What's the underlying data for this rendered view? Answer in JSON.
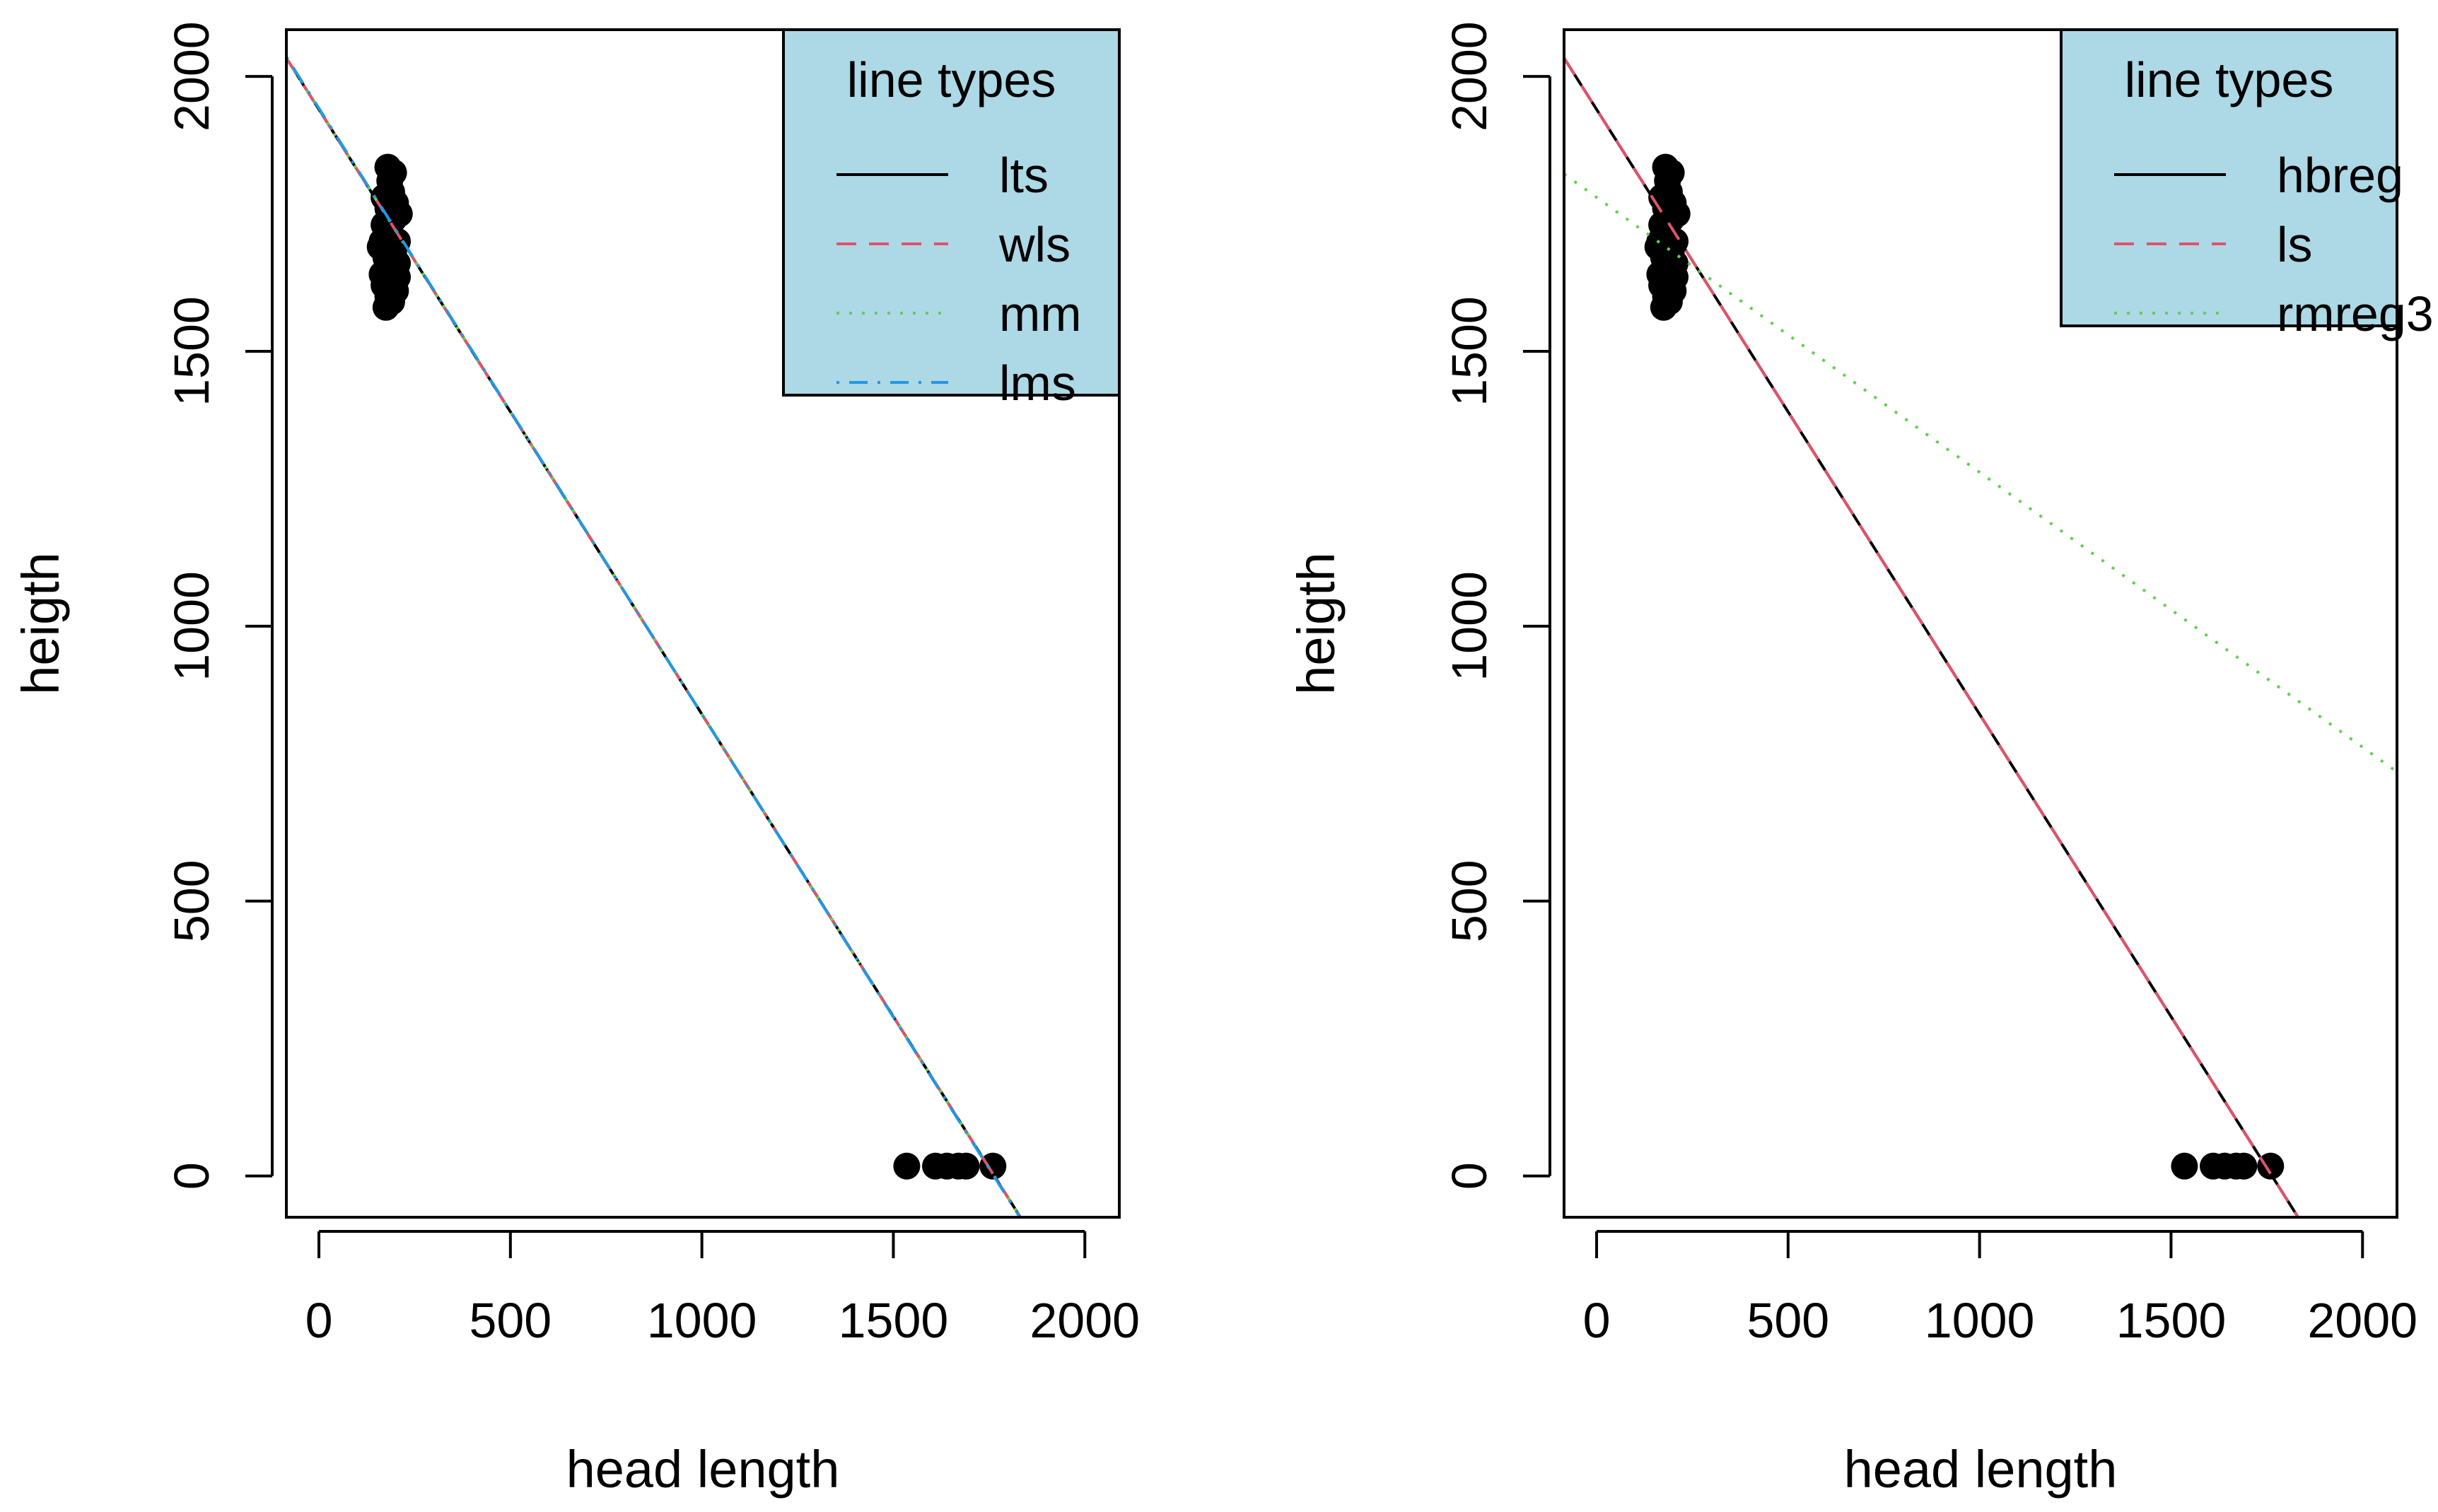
{
  "chart_data": [
    {
      "type": "scatter",
      "title": "",
      "xlabel": "head length",
      "ylabel": "heigth",
      "xlim": [
        -85,
        2090
      ],
      "ylim": [
        -75,
        2085
      ],
      "xticks": [
        0,
        500,
        1000,
        1500,
        2000
      ],
      "yticks": [
        0,
        500,
        1000,
        1500,
        2000
      ],
      "points": [
        {
          "x": 175,
          "y": 1580
        },
        {
          "x": 180,
          "y": 1600
        },
        {
          "x": 190,
          "y": 1590
        },
        {
          "x": 170,
          "y": 1620
        },
        {
          "x": 200,
          "y": 1610
        },
        {
          "x": 165,
          "y": 1640
        },
        {
          "x": 185,
          "y": 1650
        },
        {
          "x": 205,
          "y": 1635
        },
        {
          "x": 175,
          "y": 1670
        },
        {
          "x": 195,
          "y": 1680
        },
        {
          "x": 165,
          "y": 1700
        },
        {
          "x": 185,
          "y": 1710
        },
        {
          "x": 205,
          "y": 1700
        },
        {
          "x": 170,
          "y": 1730
        },
        {
          "x": 195,
          "y": 1740
        },
        {
          "x": 180,
          "y": 1760
        },
        {
          "x": 200,
          "y": 1770
        },
        {
          "x": 170,
          "y": 1780
        },
        {
          "x": 190,
          "y": 1790
        },
        {
          "x": 185,
          "y": 1810
        },
        {
          "x": 180,
          "y": 1835
        },
        {
          "x": 195,
          "y": 1825
        },
        {
          "x": 210,
          "y": 1750
        },
        {
          "x": 160,
          "y": 1690
        },
        {
          "x": 205,
          "y": 1660
        },
        {
          "x": 1535,
          "y": 18
        },
        {
          "x": 1610,
          "y": 18
        },
        {
          "x": 1640,
          "y": 18
        },
        {
          "x": 1670,
          "y": 18
        },
        {
          "x": 1690,
          "y": 18
        },
        {
          "x": 1760,
          "y": 18
        }
      ],
      "series": [
        {
          "name": "lts",
          "color": "#000000",
          "dash": "solid",
          "intercept": 1940,
          "slope": -1.1
        },
        {
          "name": "wls",
          "color": "#DF536B",
          "dash": "dashed",
          "intercept": 1940,
          "slope": -1.1
        },
        {
          "name": "mm",
          "color": "#61D04F",
          "dash": "dotted",
          "intercept": 1940,
          "slope": -1.1
        },
        {
          "name": "lms",
          "color": "#2297E6",
          "dash": "dotdash",
          "intercept": 1942,
          "slope": -1.102
        }
      ],
      "legend": {
        "title": "line types",
        "position": "top-right",
        "background": "#ADD8E6"
      }
    },
    {
      "type": "scatter",
      "title": "",
      "xlabel": "head length",
      "ylabel": "heigth",
      "xlim": [
        -85,
        2090
      ],
      "ylim": [
        -75,
        2085
      ],
      "xticks": [
        0,
        500,
        1000,
        1500,
        2000
      ],
      "yticks": [
        0,
        500,
        1000,
        1500,
        2000
      ],
      "points": [
        {
          "x": 175,
          "y": 1580
        },
        {
          "x": 180,
          "y": 1600
        },
        {
          "x": 190,
          "y": 1590
        },
        {
          "x": 170,
          "y": 1620
        },
        {
          "x": 200,
          "y": 1610
        },
        {
          "x": 165,
          "y": 1640
        },
        {
          "x": 185,
          "y": 1650
        },
        {
          "x": 205,
          "y": 1635
        },
        {
          "x": 175,
          "y": 1670
        },
        {
          "x": 195,
          "y": 1680
        },
        {
          "x": 165,
          "y": 1700
        },
        {
          "x": 185,
          "y": 1710
        },
        {
          "x": 205,
          "y": 1700
        },
        {
          "x": 170,
          "y": 1730
        },
        {
          "x": 195,
          "y": 1740
        },
        {
          "x": 180,
          "y": 1760
        },
        {
          "x": 200,
          "y": 1770
        },
        {
          "x": 170,
          "y": 1780
        },
        {
          "x": 190,
          "y": 1790
        },
        {
          "x": 185,
          "y": 1810
        },
        {
          "x": 180,
          "y": 1835
        },
        {
          "x": 195,
          "y": 1825
        },
        {
          "x": 210,
          "y": 1750
        },
        {
          "x": 160,
          "y": 1690
        },
        {
          "x": 205,
          "y": 1660
        },
        {
          "x": 1535,
          "y": 18
        },
        {
          "x": 1610,
          "y": 18
        },
        {
          "x": 1640,
          "y": 18
        },
        {
          "x": 1670,
          "y": 18
        },
        {
          "x": 1690,
          "y": 18
        },
        {
          "x": 1760,
          "y": 18
        }
      ],
      "series": [
        {
          "name": "hbreg",
          "color": "#000000",
          "dash": "solid",
          "intercept": 1940,
          "slope": -1.1
        },
        {
          "name": "ls",
          "color": "#DF536B",
          "dash": "dashed",
          "intercept": 1940,
          "slope": -1.1
        },
        {
          "name": "rmreg3",
          "color": "#61D04F",
          "dash": "dotted",
          "intercept": 1780,
          "slope": -0.5
        }
      ],
      "legend": {
        "title": "line types",
        "position": "top-right",
        "background": "#ADD8E6"
      }
    }
  ]
}
